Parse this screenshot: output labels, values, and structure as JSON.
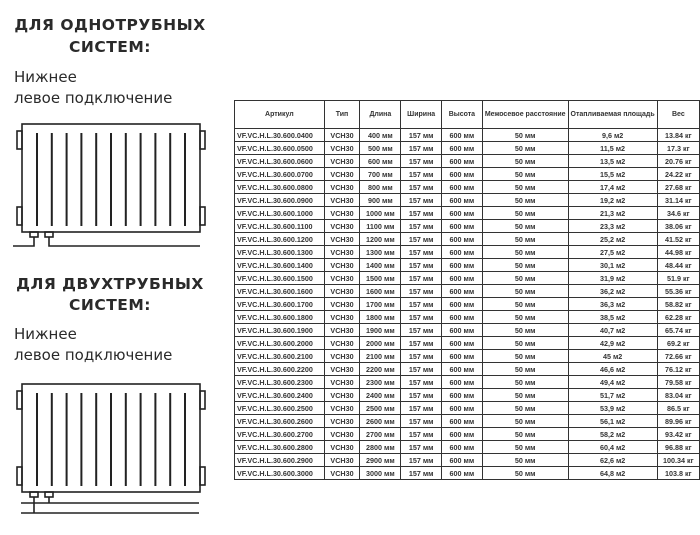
{
  "single_pipe": {
    "heading_1": "ДЛЯ ОДНОТРУБНЫХ",
    "heading_2": "СИСТЕМ:",
    "sub_1": "Нижнее",
    "sub_2": "левое подключение"
  },
  "two_pipe": {
    "heading_1": "ДЛЯ ДВУХТРУБНЫХ",
    "heading_2": "СИСТЕМ:",
    "sub_1": "Нижнее",
    "sub_2": "левое подключение"
  },
  "table": {
    "headers": [
      "Артикул",
      "Тип",
      "Длина",
      "Ширина",
      "Высота",
      "Межосевое расстояние",
      "Отапливаемая площадь",
      "Вес"
    ],
    "rows": [
      [
        "VF.VC.H.L.30.600.0400",
        "VCH30",
        "400 мм",
        "157 мм",
        "600 мм",
        "50 мм",
        "9,6 м2",
        "13.84 кг"
      ],
      [
        "VF.VC.H.L.30.600.0500",
        "VCH30",
        "500 мм",
        "157 мм",
        "600 мм",
        "50 мм",
        "11,5 м2",
        "17.3 кг"
      ],
      [
        "VF.VC.H.L.30.600.0600",
        "VCH30",
        "600 мм",
        "157 мм",
        "600 мм",
        "50 мм",
        "13,5 м2",
        "20.76 кг"
      ],
      [
        "VF.VC.H.L.30.600.0700",
        "VCH30",
        "700 мм",
        "157 мм",
        "600 мм",
        "50 мм",
        "15,5 м2",
        "24.22 кг"
      ],
      [
        "VF.VC.H.L.30.600.0800",
        "VCH30",
        "800 мм",
        "157 мм",
        "600 мм",
        "50 мм",
        "17,4 м2",
        "27.68 кг"
      ],
      [
        "VF.VC.H.L.30.600.0900",
        "VCH30",
        "900 мм",
        "157 мм",
        "600 мм",
        "50 мм",
        "19,2 м2",
        "31.14 кг"
      ],
      [
        "VF.VC.H.L.30.600.1000",
        "VCH30",
        "1000 мм",
        "157 мм",
        "600 мм",
        "50 мм",
        "21,3 м2",
        "34.6 кг"
      ],
      [
        "VF.VC.H.L.30.600.1100",
        "VCH30",
        "1100 мм",
        "157 мм",
        "600 мм",
        "50 мм",
        "23,3 м2",
        "38.06 кг"
      ],
      [
        "VF.VC.H.L.30.600.1200",
        "VCH30",
        "1200 мм",
        "157 мм",
        "600 мм",
        "50 мм",
        "25,2 м2",
        "41.52 кг"
      ],
      [
        "VF.VC.H.L.30.600.1300",
        "VCH30",
        "1300 мм",
        "157 мм",
        "600 мм",
        "50 мм",
        "27,5 м2",
        "44.98 кг"
      ],
      [
        "VF.VC.H.L.30.600.1400",
        "VCH30",
        "1400 мм",
        "157 мм",
        "600 мм",
        "50 мм",
        "30,1 м2",
        "48.44 кг"
      ],
      [
        "VF.VC.H.L.30.600.1500",
        "VCH30",
        "1500 мм",
        "157 мм",
        "600 мм",
        "50 мм",
        "31,9 м2",
        "51.9 кг"
      ],
      [
        "VF.VC.H.L.30.600.1600",
        "VCH30",
        "1600 мм",
        "157 мм",
        "600 мм",
        "50 мм",
        "36,2 м2",
        "55.36 кг"
      ],
      [
        "VF.VC.H.L.30.600.1700",
        "VCH30",
        "1700 мм",
        "157 мм",
        "600 мм",
        "50 мм",
        "36,3 м2",
        "58.82 кг"
      ],
      [
        "VF.VC.H.L.30.600.1800",
        "VCH30",
        "1800 мм",
        "157 мм",
        "600 мм",
        "50 мм",
        "38,5 м2",
        "62.28 кг"
      ],
      [
        "VF.VC.H.L.30.600.1900",
        "VCH30",
        "1900 мм",
        "157 мм",
        "600 мм",
        "50 мм",
        "40,7 м2",
        "65.74 кг"
      ],
      [
        "VF.VC.H.L.30.600.2000",
        "VCH30",
        "2000 мм",
        "157 мм",
        "600 мм",
        "50 мм",
        "42,9 м2",
        "69.2 кг"
      ],
      [
        "VF.VC.H.L.30.600.2100",
        "VCH30",
        "2100 мм",
        "157 мм",
        "600 мм",
        "50 мм",
        "45 м2",
        "72.66 кг"
      ],
      [
        "VF.VC.H.L.30.600.2200",
        "VCH30",
        "2200 мм",
        "157 мм",
        "600 мм",
        "50 мм",
        "46,6 м2",
        "76.12 кг"
      ],
      [
        "VF.VC.H.L.30.600.2300",
        "VCH30",
        "2300 мм",
        "157 мм",
        "600 мм",
        "50 мм",
        "49,4 м2",
        "79.58 кг"
      ],
      [
        "VF.VC.H.L.30.600.2400",
        "VCH30",
        "2400 мм",
        "157 мм",
        "600 мм",
        "50 мм",
        "51,7 м2",
        "83.04 кг"
      ],
      [
        "VF.VC.H.L.30.600.2500",
        "VCH30",
        "2500 мм",
        "157 мм",
        "600 мм",
        "50 мм",
        "53,9 м2",
        "86.5 кг"
      ],
      [
        "VF.VC.H.L.30.600.2600",
        "VCH30",
        "2600 мм",
        "157 мм",
        "600 мм",
        "50 мм",
        "56,1 м2",
        "89.96 кг"
      ],
      [
        "VF.VC.H.L.30.600.2700",
        "VCH30",
        "2700 мм",
        "157 мм",
        "600 мм",
        "50 мм",
        "58,2 м2",
        "93.42 кг"
      ],
      [
        "VF.VC.H.L.30.600.2800",
        "VCH30",
        "2800 мм",
        "157 мм",
        "600 мм",
        "50 мм",
        "60,4 м2",
        "96.88 кг"
      ],
      [
        "VF.VC.H.L.30.600.2900",
        "VCH30",
        "2900 мм",
        "157 мм",
        "600 мм",
        "50 мм",
        "62,6 м2",
        "100.34 кг"
      ],
      [
        "VF.VC.H.L.30.600.3000",
        "VCH30",
        "3000 мм",
        "157 мм",
        "600 мм",
        "50 мм",
        "64,8 м2",
        "103.8 кг"
      ]
    ]
  }
}
